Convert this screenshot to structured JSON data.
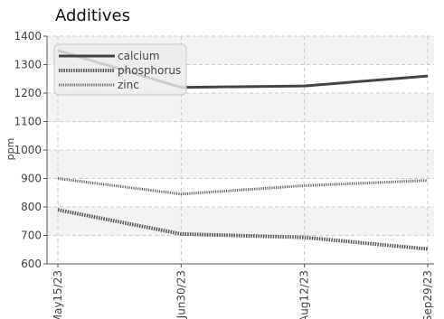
{
  "chart_data": {
    "type": "line",
    "title": "Additives",
    "ylabel": "ppm",
    "xlabel": "",
    "categories": [
      "May15/23",
      "Jun30/23",
      "Aug12/23",
      "Sep29/23"
    ],
    "ylim": [
      600,
      1400
    ],
    "yticks": [
      600,
      700,
      800,
      900,
      1000,
      1100,
      1200,
      1300,
      1400
    ],
    "grid": true,
    "legend_position": "top-left",
    "series": [
      {
        "name": "calcium",
        "values": [
          1350,
          1220,
          1225,
          1260
        ],
        "color": "#444444",
        "style": "solid"
      },
      {
        "name": "phosphorus",
        "values": [
          790,
          705,
          693,
          652
        ],
        "color": "#555555",
        "style": "dotted-thick"
      },
      {
        "name": "zinc",
        "values": [
          900,
          845,
          875,
          893
        ],
        "color": "#666666",
        "style": "dotted"
      }
    ]
  }
}
